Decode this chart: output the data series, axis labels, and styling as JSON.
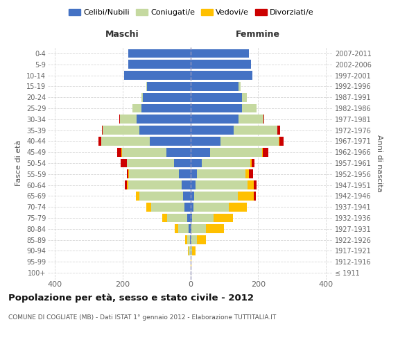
{
  "age_groups": [
    "100+",
    "95-99",
    "90-94",
    "85-89",
    "80-84",
    "75-79",
    "70-74",
    "65-69",
    "60-64",
    "55-59",
    "50-54",
    "45-49",
    "40-44",
    "35-39",
    "30-34",
    "25-29",
    "20-24",
    "15-19",
    "10-14",
    "5-9",
    "0-4"
  ],
  "birth_years": [
    "≤ 1911",
    "1912-1916",
    "1917-1921",
    "1922-1926",
    "1927-1931",
    "1932-1936",
    "1937-1941",
    "1942-1946",
    "1947-1951",
    "1952-1956",
    "1957-1961",
    "1962-1966",
    "1967-1971",
    "1972-1976",
    "1977-1981",
    "1982-1986",
    "1987-1991",
    "1992-1996",
    "1997-2001",
    "2002-2006",
    "2007-2011"
  ],
  "colors": {
    "celibi": "#4472c4",
    "coniugati": "#c5d9a0",
    "vedovi": "#ffc000",
    "divorziati": "#cc0000"
  },
  "maschi": {
    "celibi": [
      0,
      0,
      0,
      2,
      5,
      10,
      18,
      22,
      25,
      33,
      48,
      70,
      120,
      150,
      158,
      145,
      140,
      128,
      195,
      183,
      183
    ],
    "coniugati": [
      0,
      0,
      5,
      8,
      30,
      58,
      98,
      128,
      158,
      148,
      138,
      132,
      142,
      108,
      50,
      25,
      5,
      2,
      0,
      0,
      0
    ],
    "vedovi": [
      0,
      0,
      2,
      5,
      12,
      15,
      14,
      10,
      5,
      2,
      1,
      1,
      1,
      0,
      0,
      0,
      0,
      0,
      0,
      0,
      0
    ],
    "divorziati": [
      0,
      0,
      0,
      0,
      0,
      0,
      0,
      0,
      5,
      5,
      18,
      12,
      8,
      2,
      2,
      0,
      0,
      0,
      0,
      0,
      0
    ]
  },
  "femmine": {
    "nubili": [
      0,
      0,
      0,
      2,
      3,
      5,
      10,
      12,
      15,
      20,
      33,
      58,
      88,
      128,
      143,
      153,
      153,
      143,
      183,
      178,
      173
    ],
    "coniugate": [
      0,
      2,
      5,
      18,
      43,
      63,
      103,
      128,
      153,
      143,
      143,
      153,
      173,
      128,
      73,
      43,
      13,
      5,
      0,
      0,
      0
    ],
    "vedove": [
      0,
      2,
      10,
      25,
      53,
      58,
      53,
      48,
      18,
      10,
      5,
      3,
      1,
      0,
      0,
      0,
      0,
      0,
      0,
      0,
      0
    ],
    "divorziate": [
      0,
      0,
      0,
      0,
      0,
      0,
      0,
      5,
      10,
      12,
      8,
      15,
      12,
      8,
      2,
      0,
      0,
      0,
      0,
      0,
      0
    ]
  },
  "xlim": 420,
  "title": "Popolazione per età, sesso e stato civile - 2012",
  "subtitle": "COMUNE DI COGLIATE (MB) - Dati ISTAT 1° gennaio 2012 - Elaborazione TUTTITALIA.IT",
  "ylabel_left": "Fasce di età",
  "ylabel_right": "Anni di nascita",
  "xlabel_maschi": "Maschi",
  "xlabel_femmine": "Femmine",
  "bg_color": "#ffffff",
  "grid_color": "#cccccc",
  "bar_height": 0.82,
  "legend_labels": [
    "Celibi/Nubili",
    "Coniugati/e",
    "Vedovi/e",
    "Divorziati/e"
  ]
}
